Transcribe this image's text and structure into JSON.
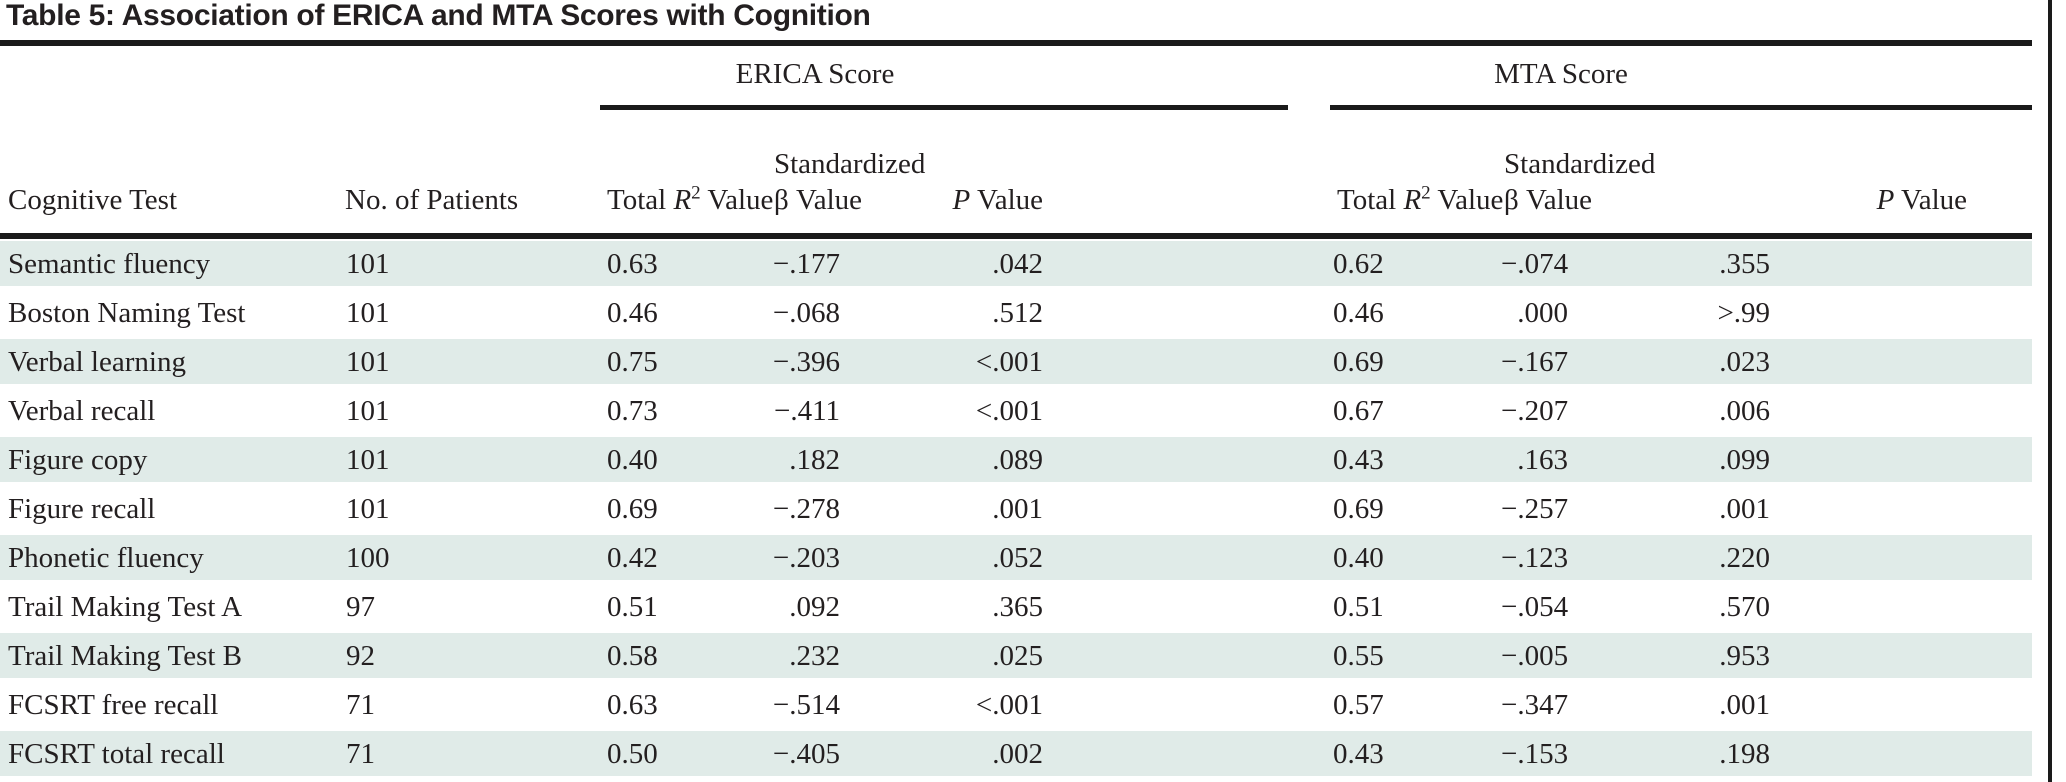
{
  "title": "Table 5: Association of ERICA and MTA Scores with Cognition",
  "colors": {
    "row_shade": "#e0ebe8",
    "rule": "#1a1a1a",
    "text": "#231f20"
  },
  "table": {
    "group_headers": [
      {
        "label": "ERICA Score"
      },
      {
        "label": "MTA Score"
      }
    ],
    "column_headers": {
      "cognitive_test": "Cognitive Test",
      "no_of_patients": "No. of Patients",
      "total_r2": {
        "pre": "Total ",
        "symbol": "R",
        "sup": "2",
        "post": " Value"
      },
      "standardized_beta": {
        "line1": "Standardized",
        "line2": "β Value"
      },
      "p_value": {
        "symbol": "P",
        "post": " Value"
      }
    },
    "rows": [
      {
        "test": "Semantic fluency",
        "n": "101",
        "erica": {
          "r2": "0.63",
          "beta": "−.177",
          "p": ".042"
        },
        "mta": {
          "r2": "0.62",
          "beta": "−.074",
          "p": ".355"
        }
      },
      {
        "test": "Boston Naming Test",
        "n": "101",
        "erica": {
          "r2": "0.46",
          "beta": "−.068",
          "p": ".512"
        },
        "mta": {
          "r2": "0.46",
          "beta": ".000",
          "p": ">.99"
        }
      },
      {
        "test": "Verbal learning",
        "n": "101",
        "erica": {
          "r2": "0.75",
          "beta": "−.396",
          "p": "<.001"
        },
        "mta": {
          "r2": "0.69",
          "beta": "−.167",
          "p": ".023"
        }
      },
      {
        "test": "Verbal recall",
        "n": "101",
        "erica": {
          "r2": "0.73",
          "beta": "−.411",
          "p": "<.001"
        },
        "mta": {
          "r2": "0.67",
          "beta": "−.207",
          "p": ".006"
        }
      },
      {
        "test": "Figure copy",
        "n": "101",
        "erica": {
          "r2": "0.40",
          "beta": ".182",
          "p": ".089"
        },
        "mta": {
          "r2": "0.43",
          "beta": ".163",
          "p": ".099"
        }
      },
      {
        "test": "Figure recall",
        "n": "101",
        "erica": {
          "r2": "0.69",
          "beta": "−.278",
          "p": ".001"
        },
        "mta": {
          "r2": "0.69",
          "beta": "−.257",
          "p": ".001"
        }
      },
      {
        "test": "Phonetic fluency",
        "n": "100",
        "erica": {
          "r2": "0.42",
          "beta": "−.203",
          "p": ".052"
        },
        "mta": {
          "r2": "0.40",
          "beta": "−.123",
          "p": ".220"
        }
      },
      {
        "test": "Trail Making Test A",
        "n": "97",
        "erica": {
          "r2": "0.51",
          "beta": ".092",
          "p": ".365"
        },
        "mta": {
          "r2": "0.51",
          "beta": "−.054",
          "p": ".570"
        }
      },
      {
        "test": "Trail Making Test B",
        "n": "92",
        "erica": {
          "r2": "0.58",
          "beta": ".232",
          "p": ".025"
        },
        "mta": {
          "r2": "0.55",
          "beta": "−.005",
          "p": ".953"
        }
      },
      {
        "test": "FCSRT free recall",
        "n": "71",
        "erica": {
          "r2": "0.63",
          "beta": "−.514",
          "p": "<.001"
        },
        "mta": {
          "r2": "0.57",
          "beta": "−.347",
          "p": ".001"
        }
      },
      {
        "test": "FCSRT total recall",
        "n": "71",
        "erica": {
          "r2": "0.50",
          "beta": "−.405",
          "p": ".002"
        },
        "mta": {
          "r2": "0.43",
          "beta": "−.153",
          "p": ".198"
        }
      }
    ]
  }
}
